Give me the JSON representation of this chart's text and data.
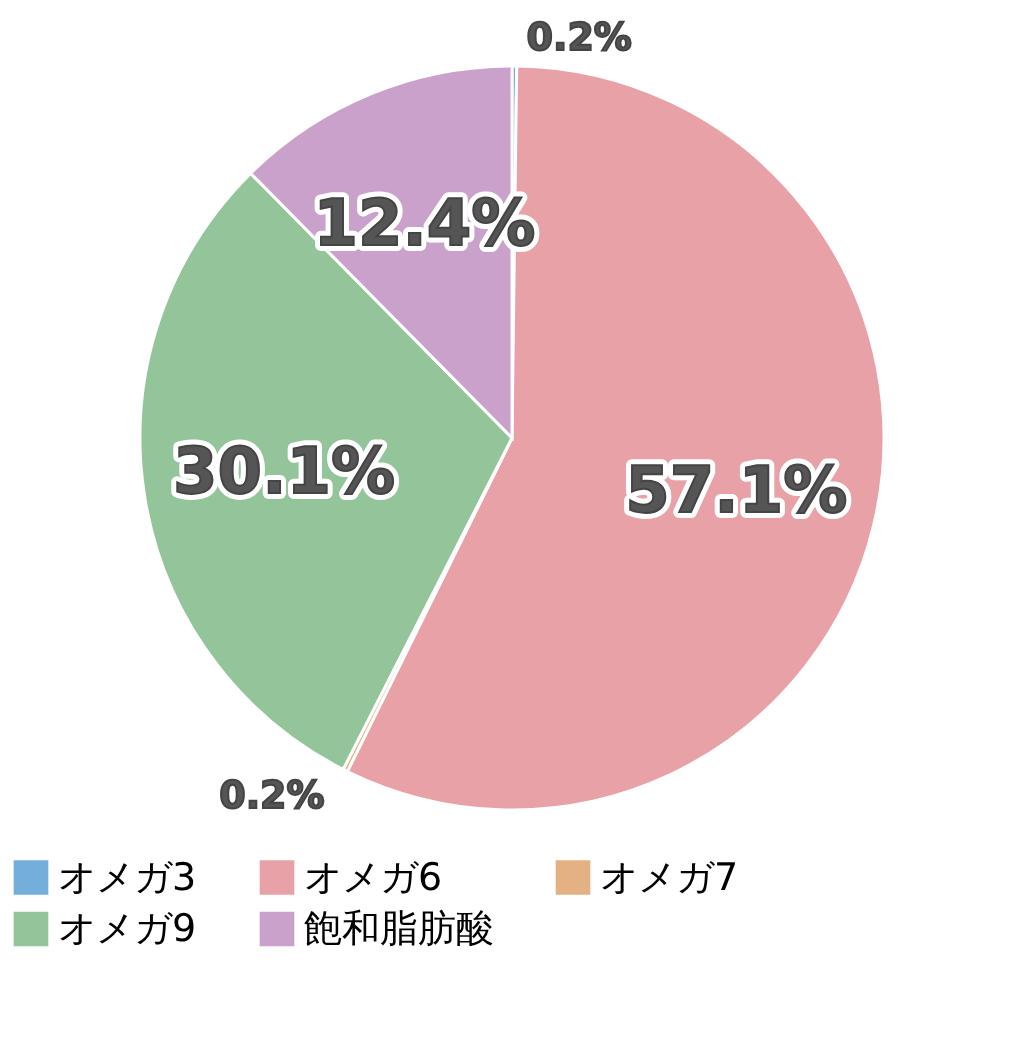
{
  "chart_data": {
    "type": "pie",
    "categories": [
      "オメガ3",
      "オメガ6",
      "オメガ7",
      "オメガ9",
      "飽和脂肪酸"
    ],
    "values": [
      0.2,
      57.1,
      0.2,
      30.1,
      12.4
    ],
    "value_labels": [
      "0.2%",
      "57.1%",
      "0.2%",
      "30.1%",
      "12.4%"
    ],
    "colors": [
      "#74aedb",
      "#e8a2a7",
      "#e4b282",
      "#93c49a",
      "#c9a1cb"
    ],
    "legend": "bottom"
  }
}
